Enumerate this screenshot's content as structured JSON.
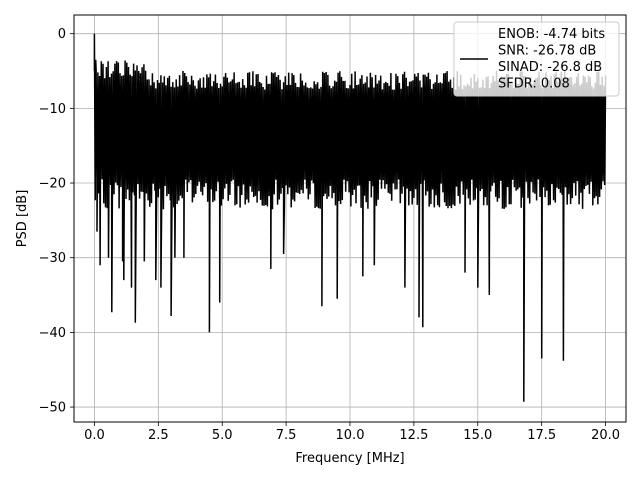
{
  "chart_data": {
    "type": "line",
    "xlabel": "Frequency [MHz]",
    "ylabel": "PSD [dB]",
    "xlim": [
      -0.8,
      20.8
    ],
    "ylim": [
      -52,
      2.5
    ],
    "xticks": [
      0.0,
      2.5,
      5.0,
      7.5,
      10.0,
      12.5,
      15.0,
      17.5,
      20.0
    ],
    "xtick_labels": [
      "0.0",
      "2.5",
      "5.0",
      "7.5",
      "10.0",
      "12.5",
      "15.0",
      "17.5",
      "20.0"
    ],
    "yticks": [
      0,
      -10,
      -20,
      -30,
      -40,
      -50
    ],
    "ytick_labels": [
      "0",
      "−10",
      "−20",
      "−30",
      "−40",
      "−50"
    ],
    "grid": true,
    "legend_position": "top-right",
    "legend_lines": [
      "ENOB: -4.74 bits",
      "SNR: -26.78 dB",
      "SINAD: -26.8 dB",
      "SFDR: 0.08"
    ],
    "series": [
      {
        "color": "#000000",
        "x_start": 0.0,
        "x_end": 20.0,
        "points": 600,
        "band_top": -3.5,
        "band_bottom": -23.5,
        "peaks": [
          {
            "x": 0.0,
            "y": 0.0
          },
          {
            "x": 0.05,
            "y": -3.5
          },
          {
            "x": 0.1,
            "y": -26.5
          },
          {
            "x": 0.22,
            "y": -31.0
          },
          {
            "x": 0.55,
            "y": -30.0
          },
          {
            "x": 0.68,
            "y": -37.3
          },
          {
            "x": 1.1,
            "y": -30.5
          },
          {
            "x": 1.15,
            "y": -33.0
          },
          {
            "x": 1.45,
            "y": -34.0
          },
          {
            "x": 1.6,
            "y": -38.7
          },
          {
            "x": 1.95,
            "y": -30.5
          },
          {
            "x": 2.4,
            "y": -33.0
          },
          {
            "x": 2.6,
            "y": -34.0
          },
          {
            "x": 3.0,
            "y": -37.8
          },
          {
            "x": 3.15,
            "y": -30.0
          },
          {
            "x": 3.5,
            "y": -30.0
          },
          {
            "x": 4.5,
            "y": -40.0
          },
          {
            "x": 4.9,
            "y": -36.0
          },
          {
            "x": 5.5,
            "y": -23.0
          },
          {
            "x": 6.9,
            "y": -31.5
          },
          {
            "x": 7.4,
            "y": -29.5
          },
          {
            "x": 8.9,
            "y": -36.5
          },
          {
            "x": 9.5,
            "y": -35.5
          },
          {
            "x": 10.5,
            "y": -32.5
          },
          {
            "x": 10.95,
            "y": -31.0
          },
          {
            "x": 12.15,
            "y": -34.0
          },
          {
            "x": 12.7,
            "y": -38.0
          },
          {
            "x": 12.85,
            "y": -39.3
          },
          {
            "x": 14.5,
            "y": -32.0
          },
          {
            "x": 15.0,
            "y": -34.0
          },
          {
            "x": 15.45,
            "y": -35.0
          },
          {
            "x": 16.8,
            "y": -49.3
          },
          {
            "x": 17.5,
            "y": -43.5
          },
          {
            "x": 18.35,
            "y": -43.8
          },
          {
            "x": 19.5,
            "y": -23.0
          }
        ]
      }
    ]
  }
}
